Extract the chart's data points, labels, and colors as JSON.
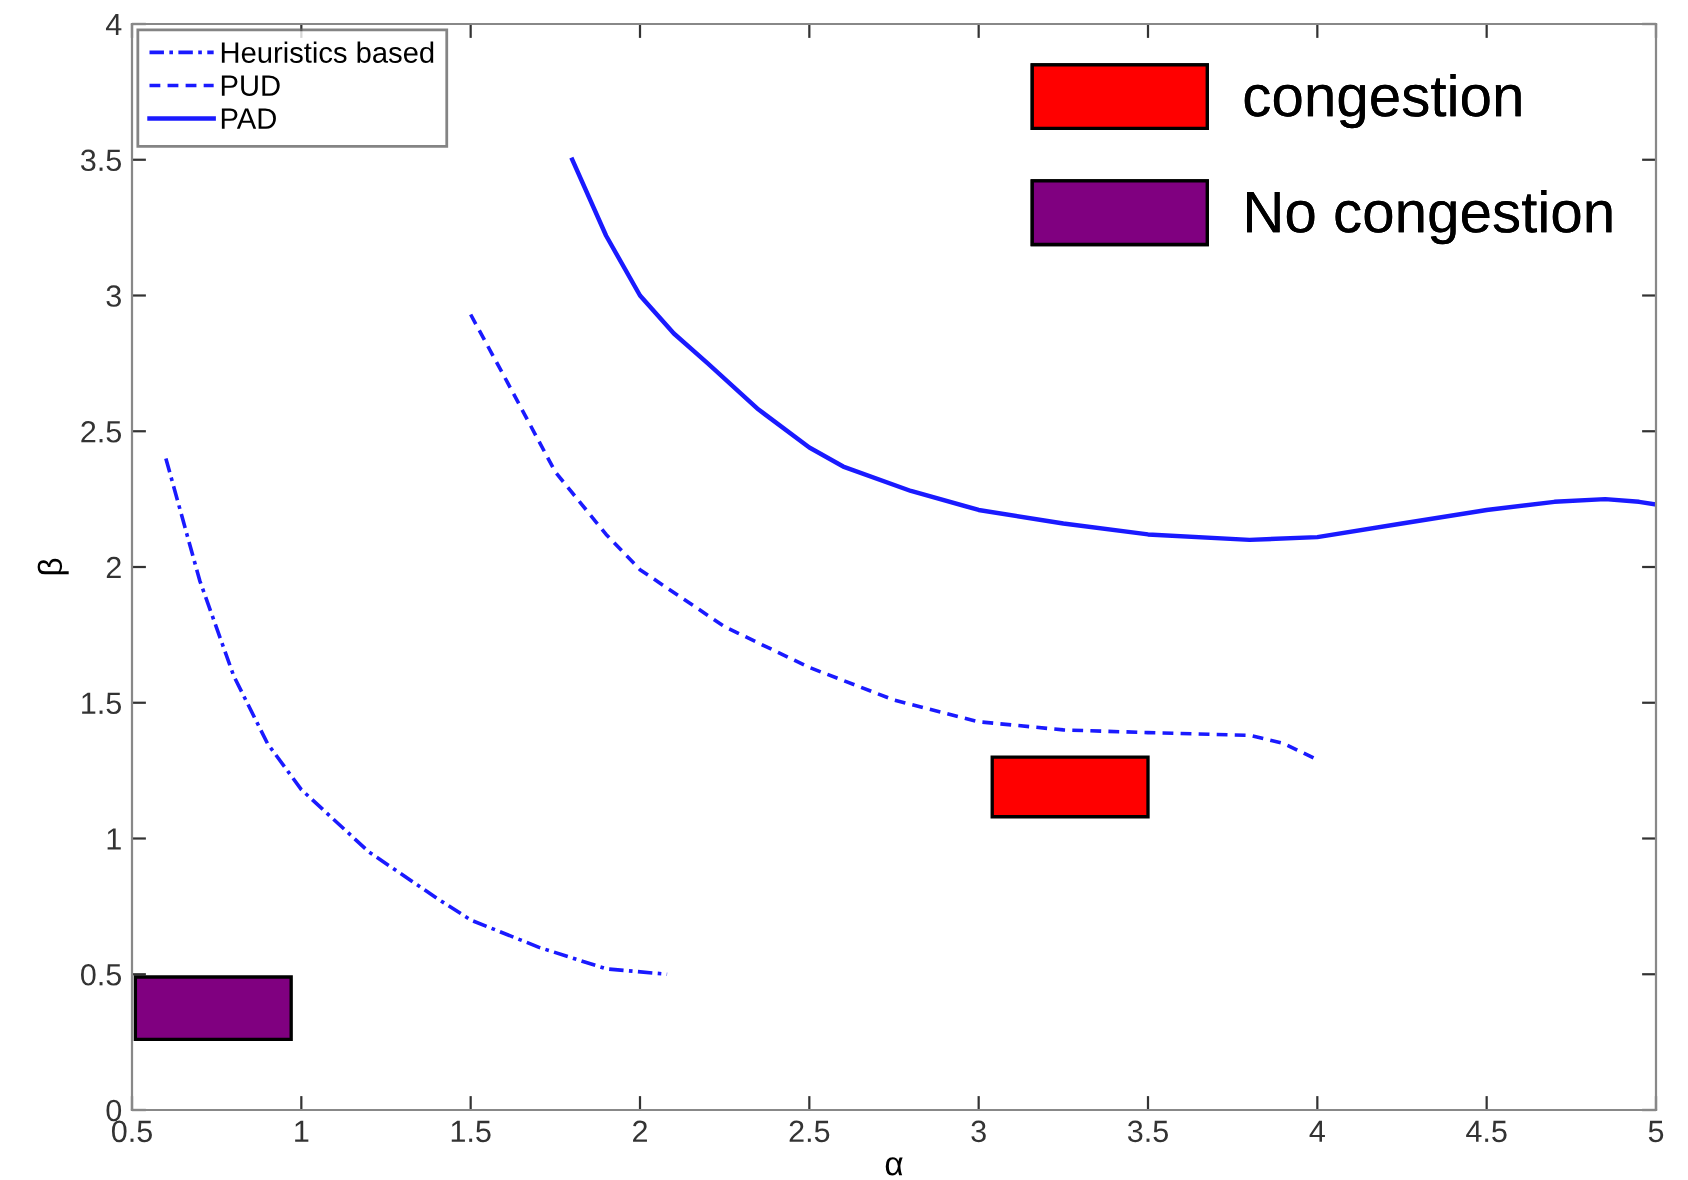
{
  "chart_data": {
    "type": "line",
    "xlabel": "α",
    "ylabel": "β",
    "xlim": [
      0.5,
      5
    ],
    "ylim": [
      0,
      4
    ],
    "xticks": [
      0.5,
      1,
      1.5,
      2,
      2.5,
      3,
      3.5,
      4,
      4.5,
      5
    ],
    "yticks": [
      0,
      0.5,
      1,
      1.5,
      2,
      2.5,
      3,
      3.5,
      4
    ],
    "grid": false,
    "legend": "top left",
    "series": [
      {
        "name": "Heuristics based",
        "color": "#1a1aff",
        "line_style": "dashdot",
        "x": [
          0.6,
          0.7,
          0.8,
          0.9,
          1.0,
          1.2,
          1.4,
          1.5,
          1.7,
          1.9,
          2.08
        ],
        "values": [
          2.4,
          1.95,
          1.6,
          1.35,
          1.18,
          0.95,
          0.78,
          0.7,
          0.6,
          0.52,
          0.5
        ]
      },
      {
        "name": "PUD",
        "color": "#1a1aff",
        "line_style": "dashed",
        "x": [
          1.5,
          1.6,
          1.75,
          1.9,
          2.0,
          2.25,
          2.5,
          2.75,
          3.0,
          3.25,
          3.5,
          3.8,
          3.9,
          4.0
        ],
        "values": [
          2.93,
          2.7,
          2.35,
          2.12,
          1.99,
          1.78,
          1.63,
          1.51,
          1.43,
          1.4,
          1.39,
          1.38,
          1.35,
          1.29
        ]
      },
      {
        "name": "PAD",
        "color": "#1a1aff",
        "line_style": "solid",
        "x": [
          1.8,
          1.9,
          2.0,
          2.1,
          2.2,
          2.35,
          2.5,
          2.6,
          2.8,
          3.0,
          3.25,
          3.5,
          3.8,
          4.0,
          4.25,
          4.5,
          4.7,
          4.85,
          4.95,
          5.0
        ],
        "values": [
          3.5,
          3.22,
          3.0,
          2.86,
          2.75,
          2.58,
          2.44,
          2.37,
          2.28,
          2.21,
          2.16,
          2.12,
          2.1,
          2.11,
          2.16,
          2.21,
          2.24,
          2.25,
          2.24,
          2.23
        ]
      },
      {
        "name": "congestion",
        "type": "bar",
        "color": "#ff0000",
        "x": [
          3.27
        ],
        "base": [
          1.08
        ],
        "values": [
          0.22
        ]
      },
      {
        "name": "No congestion",
        "type": "bar",
        "color": "#800080",
        "x": [
          0.74
        ],
        "base": [
          0.26
        ],
        "values": [
          0.23
        ]
      }
    ]
  }
}
